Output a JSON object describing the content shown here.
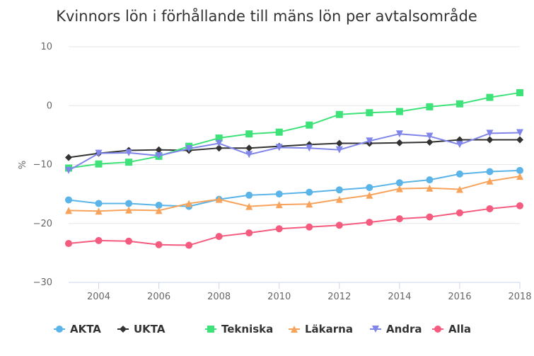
{
  "chart_data": {
    "type": "line",
    "title": "Kvinnors lön i förhållande till mäns lön per avtalsområde",
    "ylabel": "%",
    "xlabel": "",
    "xlim": [
      2003,
      2018
    ],
    "ylim": [
      -30,
      10
    ],
    "x_ticks": [
      2004,
      2006,
      2008,
      2010,
      2012,
      2014,
      2016,
      2018
    ],
    "y_ticks": [
      10,
      0,
      -10,
      -20,
      -30
    ],
    "y_tick_labels": [
      "10",
      "0",
      "−10",
      "−20",
      "−30"
    ],
    "grid": "horizontal",
    "legend_position": "bottom",
    "x": [
      2003,
      2004,
      2005,
      2006,
      2007,
      2008,
      2009,
      2010,
      2011,
      2012,
      2013,
      2014,
      2015,
      2016,
      2017,
      2018
    ],
    "series": [
      {
        "name": "AKTA",
        "color": "#5ab4e8",
        "marker": "circle",
        "values": [
          -16.0,
          -16.6,
          -16.6,
          -16.9,
          -17.1,
          -15.9,
          -15.2,
          -15.0,
          -14.7,
          -14.3,
          -13.9,
          -13.1,
          -12.6,
          -11.6,
          -11.2,
          -11.0
        ]
      },
      {
        "name": "UKTA",
        "color": "#333333",
        "marker": "diamond",
        "values": [
          -8.8,
          -8.1,
          -7.6,
          -7.5,
          -7.6,
          -7.2,
          -7.2,
          -6.9,
          -6.6,
          -6.4,
          -6.4,
          -6.3,
          -6.2,
          -5.8,
          -5.8,
          -5.8
        ]
      },
      {
        "name": "Tekniska",
        "color": "#3de378",
        "marker": "square",
        "values": [
          -10.6,
          -9.9,
          -9.6,
          -8.6,
          -6.9,
          -5.5,
          -4.8,
          -4.5,
          -3.3,
          -1.5,
          -1.2,
          -1.0,
          -0.2,
          0.3,
          1.4,
          2.2
        ]
      },
      {
        "name": "Läkarna",
        "color": "#f7a35c",
        "marker": "triangle",
        "values": [
          -17.8,
          -17.9,
          -17.7,
          -17.8,
          -16.6,
          -15.9,
          -17.1,
          -16.8,
          -16.7,
          -15.9,
          -15.2,
          -14.1,
          -14.0,
          -14.2,
          -12.8,
          -12.0
        ]
      },
      {
        "name": "Andra",
        "color": "#8085e9",
        "marker": "triangle-down",
        "values": [
          -11.0,
          -8.1,
          -8.0,
          -8.5,
          -7.3,
          -6.4,
          -8.3,
          -7.1,
          -7.2,
          -7.5,
          -6.0,
          -4.8,
          -5.2,
          -6.6,
          -4.7,
          -4.6
        ]
      },
      {
        "name": "Alla",
        "color": "#f45b7e",
        "marker": "circle",
        "values": [
          -23.4,
          -22.9,
          -23.0,
          -23.6,
          -23.7,
          -22.2,
          -21.6,
          -20.9,
          -20.6,
          -20.3,
          -19.8,
          -19.2,
          -18.9,
          -18.2,
          -17.5,
          -17.0
        ]
      }
    ]
  }
}
